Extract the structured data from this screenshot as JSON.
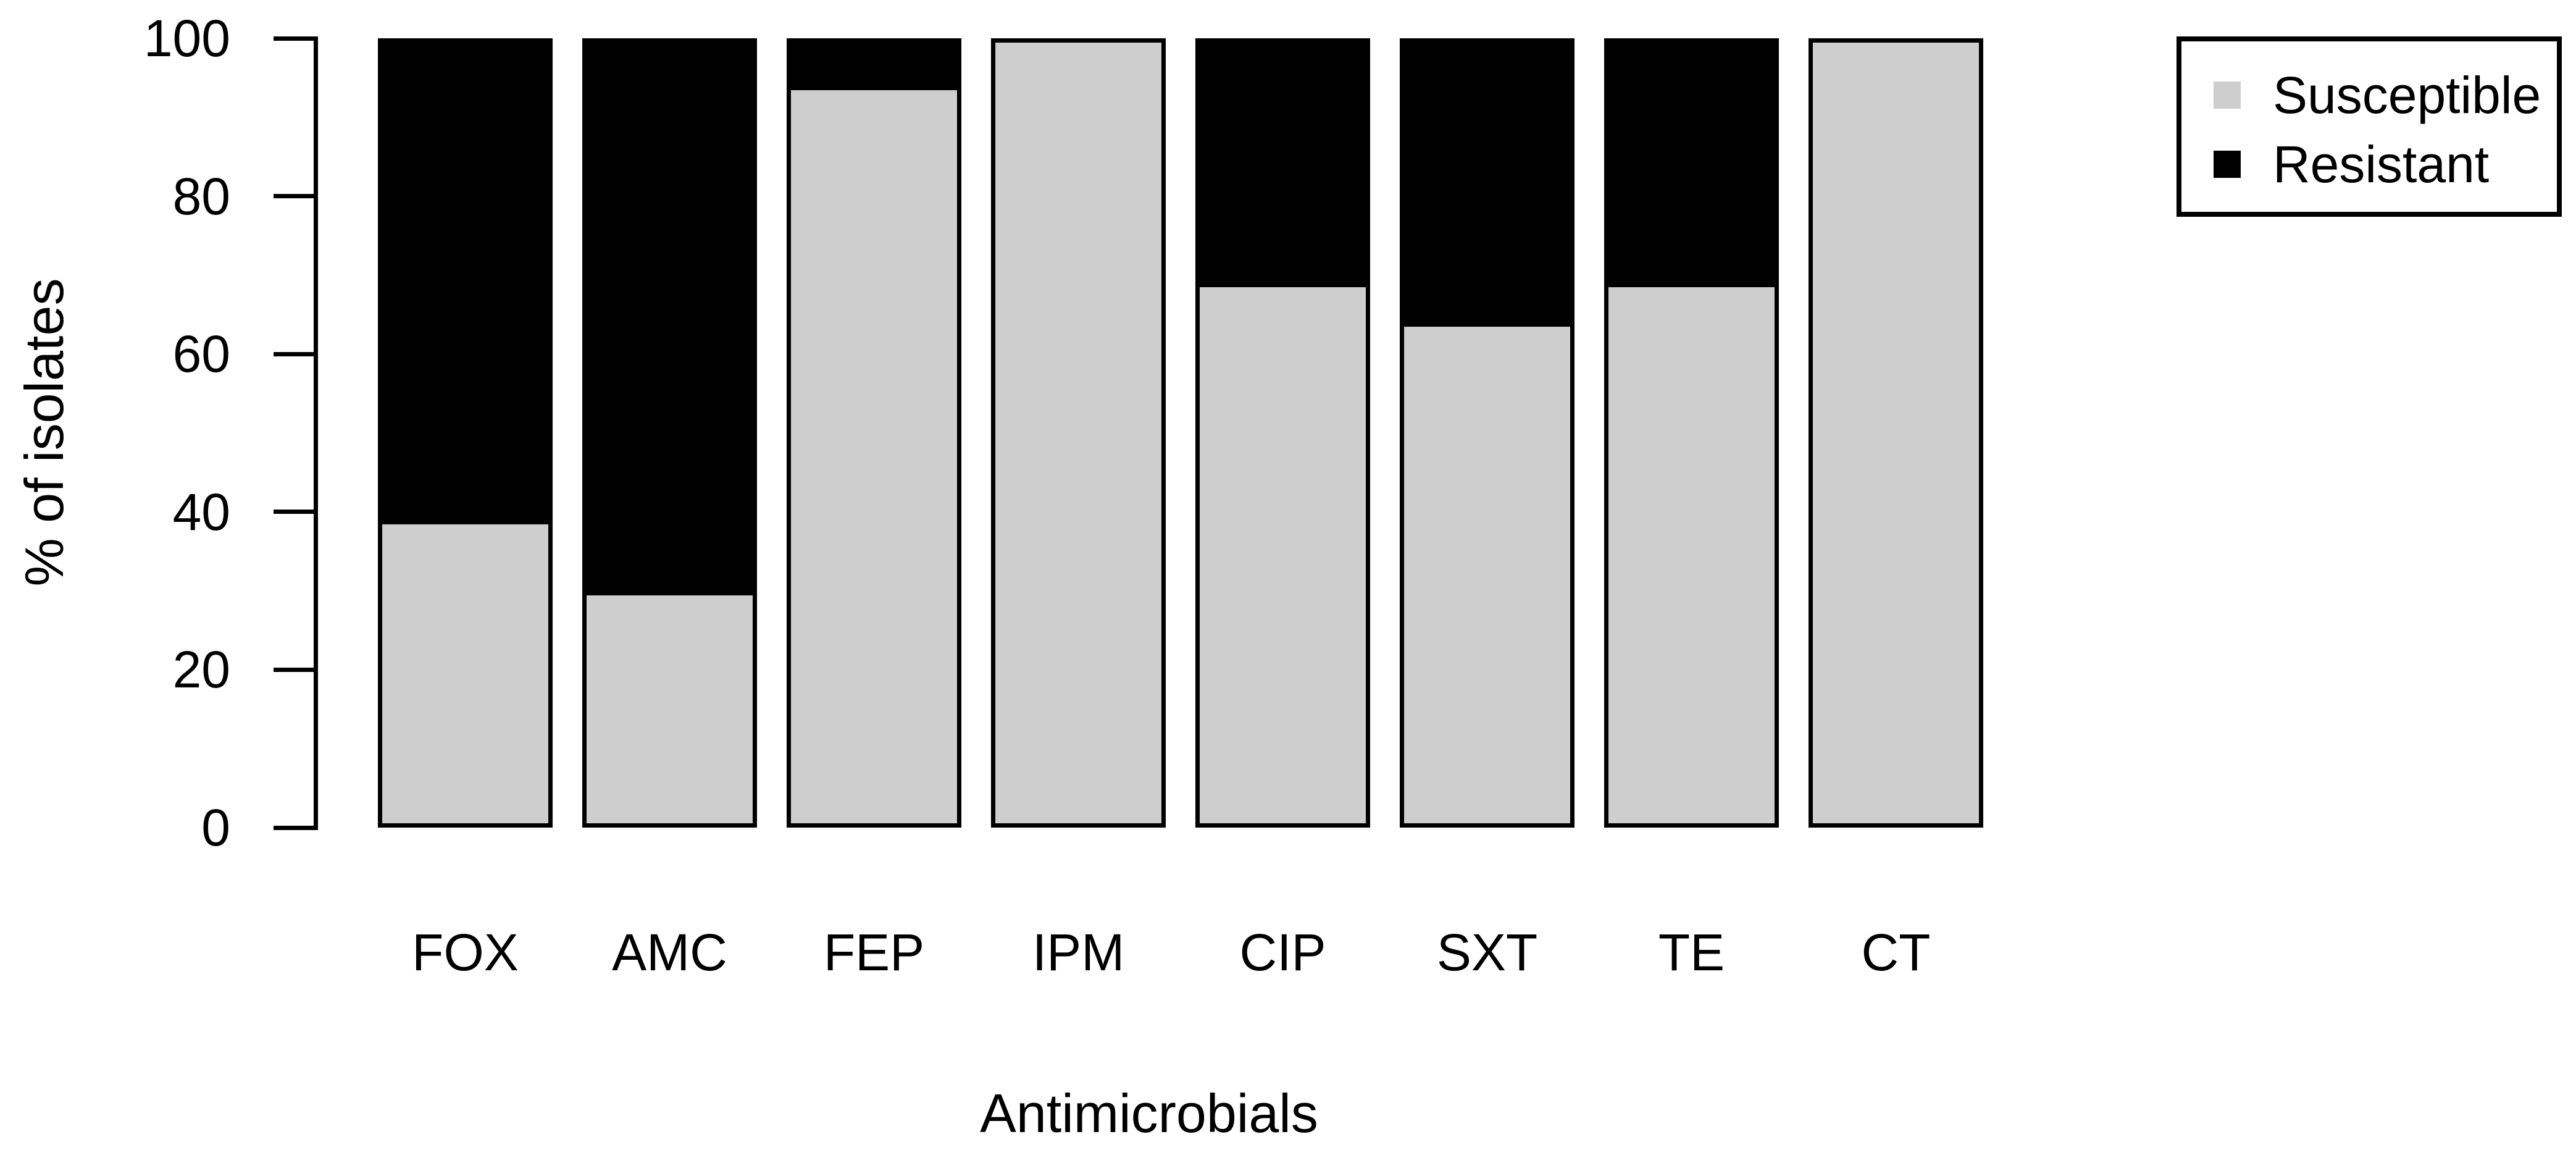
{
  "chart_data": {
    "type": "bar",
    "stacked": true,
    "orientation": "vertical",
    "title": "",
    "xlabel": "Antimicrobials",
    "ylabel": "% of isolates",
    "categories": [
      "FOX",
      "AMC",
      "FEP",
      "IPM",
      "CIP",
      "SXT",
      "TE",
      "CT"
    ],
    "series": [
      {
        "name": "Susceptible",
        "color": "#cecece",
        "values": [
          39,
          30,
          94,
          100,
          69,
          64,
          69,
          100
        ]
      },
      {
        "name": "Resistant",
        "color": "#000000",
        "values": [
          61,
          70,
          6,
          0,
          31,
          36,
          31,
          0
        ]
      }
    ],
    "ylim": [
      0,
      100
    ],
    "yticks": [
      0,
      20,
      40,
      60,
      80,
      100
    ],
    "grid": false,
    "legend_position": "top-right",
    "bar_border_color": "#000000",
    "axis_color": "#000000",
    "background_color": "#ffffff"
  }
}
